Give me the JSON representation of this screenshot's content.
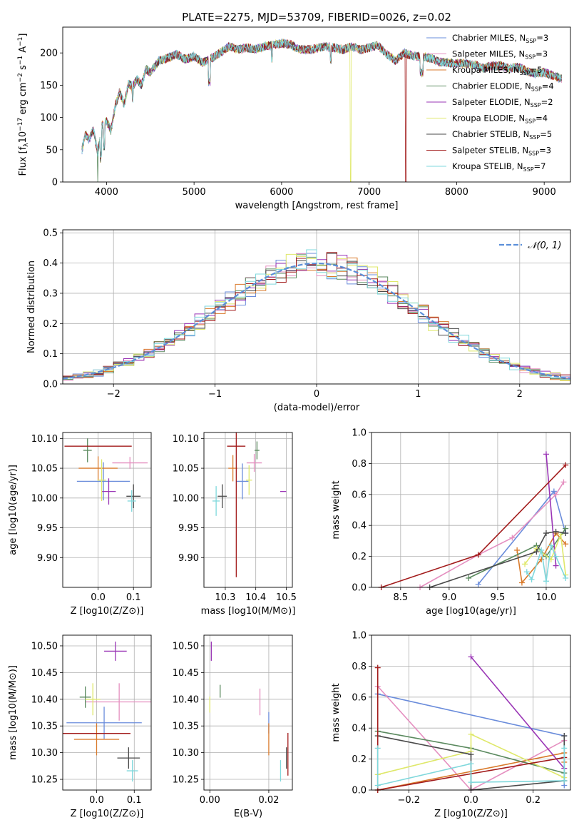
{
  "chart_data": [
    {
      "type": "line",
      "title": "PLATE=2275, MJD=53709, FIBERID=0026, z=0.02",
      "xlabel": "wavelength [Angstrom, rest frame]",
      "ylabel": "Flux [f_λ 10^-17 erg cm^-2 s^-1 A^-1]",
      "xlim": [
        3500,
        9300
      ],
      "ylim": [
        0,
        240
      ],
      "xticks": [
        "4000",
        "5000",
        "6000",
        "7000",
        "8000",
        "9000"
      ],
      "yticks": [
        "0",
        "50",
        "100",
        "150",
        "200"
      ],
      "legend_position": "upper right",
      "series": [
        {
          "name": "Chabrier MILES, N_SSP=3",
          "color": "#6a8cdb"
        },
        {
          "name": "Salpeter MILES, N_SSP=3",
          "color": "#e58fc0"
        },
        {
          "name": "Kroupa MILES, N_SSP=5",
          "color": "#d97a2b"
        },
        {
          "name": "Chabrier ELODIE, N_SSP=4",
          "color": "#5b8a5f"
        },
        {
          "name": "Salpeter ELODIE, N_SSP=2",
          "color": "#9a36b6"
        },
        {
          "name": "Kroupa ELODIE, N_SSP=4",
          "color": "#dfe86a"
        },
        {
          "name": "Chabrier STELIB, N_SSP=5",
          "color": "#4a4a4a"
        },
        {
          "name": "Salpeter STELIB, N_SSP=3",
          "color": "#a21b1b"
        },
        {
          "name": "Kroupa STELIB, N_SSP=7",
          "color": "#7fd8dc"
        }
      ],
      "envelope": {
        "x": [
          3720,
          3760,
          3800,
          3850,
          3900,
          3950,
          4000,
          4050,
          4100,
          4150,
          4200,
          4250,
          4300,
          4350,
          4400,
          4450,
          4500,
          4600,
          4700,
          4800,
          4900,
          5000,
          5100,
          5200,
          5300,
          5400,
          5500,
          5600,
          5700,
          5800,
          5900,
          6000,
          6100,
          6200,
          6300,
          6400,
          6500,
          6600,
          6700,
          6800,
          6900,
          7000,
          7100,
          7200,
          7300,
          7400,
          7500,
          7600,
          7700,
          7800,
          7900,
          8000,
          8100,
          8200,
          8300,
          8400,
          8500,
          8600,
          8700,
          8800,
          8900,
          9000,
          9100,
          9200
        ],
        "y": [
          50,
          75,
          65,
          82,
          45,
          88,
          95,
          80,
          118,
          140,
          120,
          152,
          148,
          160,
          150,
          175,
          170,
          188,
          192,
          198,
          190,
          195,
          185,
          192,
          200,
          210,
          205,
          208,
          206,
          210,
          212,
          215,
          213,
          206,
          205,
          207,
          210,
          208,
          205,
          210,
          205,
          208,
          212,
          198,
          188,
          200,
          195,
          195,
          192,
          186,
          185,
          184,
          183,
          182,
          176,
          180,
          180,
          176,
          178,
          172,
          168,
          170,
          165,
          160
        ]
      },
      "drops": [
        {
          "x": 3900,
          "y": 0
        },
        {
          "x": 6790,
          "y": 0
        },
        {
          "x": 7420,
          "y": 0
        }
      ]
    },
    {
      "type": "line",
      "xlabel": "(data-model)/error",
      "ylabel": "Normed distribution",
      "xlim": [
        -2.5,
        2.5
      ],
      "ylim": [
        0,
        0.51
      ],
      "xticks": [
        "−2",
        "−1",
        "0",
        "1",
        "2"
      ],
      "yticks": [
        "0.0",
        "0.1",
        "0.2",
        "0.3",
        "0.4",
        "0.5"
      ],
      "legend": "𝒩(0, 1)",
      "gaussian": {
        "mu": 0,
        "sigma": 1,
        "color": "#5b8fd9",
        "style": "dashed"
      },
      "histogram_bin_width": 0.1
    },
    {
      "type": "scatter",
      "xlabel": "Z [log10(Z/Z⊙)]",
      "ylabel": "age  [log10(age/yr)]",
      "xlim": [
        -0.1,
        0.15
      ],
      "ylim": [
        9.85,
        10.11
      ],
      "xticks": [
        "0.0",
        "0.1"
      ],
      "yticks": [
        "9.90",
        "9.95",
        "10.00",
        "10.05",
        "10.10"
      ],
      "points": [
        {
          "color": "#6a8cdb",
          "x": 0.015,
          "y": 10.028,
          "xe": 0.075,
          "ye": 0.032
        },
        {
          "color": "#e58fc0",
          "x": 0.09,
          "y": 10.059,
          "xe": 0.05,
          "ye": 0.01
        },
        {
          "color": "#d97a2b",
          "x": 0.0,
          "y": 10.05,
          "xe": 0.055,
          "ye": 0.02
        },
        {
          "color": "#5b8a5f",
          "x": -0.03,
          "y": 10.08,
          "xe": 0.012,
          "ye": 0.02
        },
        {
          "color": "#9a36b6",
          "x": 0.03,
          "y": 10.011,
          "xe": 0.02,
          "ye": 0.022
        },
        {
          "color": "#dfe86a",
          "x": 0.01,
          "y": 10.03,
          "xe": 0.012,
          "ye": 0.035
        },
        {
          "color": "#4a4a4a",
          "x": 0.1,
          "y": 10.003,
          "xe": 0.02,
          "ye": 0.02
        },
        {
          "color": "#a21b1b",
          "x": 0.0,
          "y": 10.087,
          "xe": 0.095,
          "ye": 0.0
        },
        {
          "color": "#7fd8dc",
          "x": 0.095,
          "y": 9.995,
          "xe": 0.012,
          "ye": 0.018
        }
      ]
    },
    {
      "type": "scatter",
      "xlabel": "mass [log10(M/M⊙)]",
      "xlim": [
        10.23,
        10.52
      ],
      "ylim": [
        9.85,
        10.11
      ],
      "xticks": [
        "10.3",
        "10.4",
        "10.5"
      ],
      "yticks": [
        "9.90",
        "9.95",
        "10.00",
        "10.05",
        "10.10"
      ],
      "points": [
        {
          "color": "#6a8cdb",
          "x": 10.356,
          "y": 10.028,
          "xe": 0.02,
          "ye": 0.03
        },
        {
          "color": "#e58fc0",
          "x": 10.395,
          "y": 10.059,
          "xe": 0.025,
          "ye": 0.015
        },
        {
          "color": "#d97a2b",
          "x": 10.325,
          "y": 10.05,
          "xe": 0.015,
          "ye": 0.022
        },
        {
          "color": "#5b8a5f",
          "x": 10.404,
          "y": 10.08,
          "xe": 0.008,
          "ye": 0.015
        },
        {
          "color": "#9a36b6",
          "x": 10.49,
          "y": 10.011,
          "xe": 0.01,
          "ye": 0.0
        },
        {
          "color": "#dfe86a",
          "x": 10.378,
          "y": 10.03,
          "xe": 0.01,
          "ye": 0.025
        },
        {
          "color": "#4a4a4a",
          "x": 10.29,
          "y": 10.003,
          "xe": 0.015,
          "ye": 0.02
        },
        {
          "color": "#a21b1b",
          "x": 10.336,
          "y": 10.087,
          "xe": 0.03,
          "ye": 0.22
        },
        {
          "color": "#7fd8dc",
          "x": 10.27,
          "y": 9.995,
          "xe": 0.012,
          "ye": 0.025
        }
      ]
    },
    {
      "type": "line",
      "xlabel": "age  [log10(age/yr)]",
      "ylabel": "mass weight",
      "xlim": [
        8.2,
        10.25
      ],
      "ylim": [
        0,
        1.0
      ],
      "xticks": [
        "8.5",
        "9.0",
        "9.5",
        "10.0"
      ],
      "yticks": [
        "0.0",
        "0.2",
        "0.4",
        "0.6",
        "0.8",
        "1.0"
      ],
      "series": [
        {
          "color": "#6a8cdb",
          "x": [
            9.3,
            10.08,
            10.2
          ],
          "y": [
            0.02,
            0.62,
            0.35
          ]
        },
        {
          "color": "#e58fc0",
          "x": [
            8.7,
            9.3,
            9.65,
            10.1,
            10.18
          ],
          "y": [
            0.0,
            0.21,
            0.32,
            0.6,
            0.68
          ]
        },
        {
          "color": "#d97a2b",
          "x": [
            9.7,
            9.75,
            9.95,
            10.1,
            10.2
          ],
          "y": [
            0.24,
            0.03,
            0.18,
            0.35,
            0.28
          ]
        },
        {
          "color": "#5b8a5f",
          "x": [
            9.2,
            9.9,
            10.0,
            10.2
          ],
          "y": [
            0.06,
            0.27,
            0.2,
            0.38
          ]
        },
        {
          "color": "#9a36b6",
          "x": [
            10.0,
            10.1
          ],
          "y": [
            0.86,
            0.14
          ]
        },
        {
          "color": "#dfe86a",
          "x": [
            9.78,
            9.9,
            10.05,
            10.15,
            10.2
          ],
          "y": [
            0.15,
            0.25,
            0.18,
            0.34,
            0.08
          ]
        },
        {
          "color": "#4a4a4a",
          "x": [
            8.8,
            9.9,
            10.0,
            10.1,
            10.2
          ],
          "y": [
            0.0,
            0.23,
            0.35,
            0.36,
            0.35
          ]
        },
        {
          "color": "#a21b1b",
          "x": [
            8.3,
            9.3,
            10.2
          ],
          "y": [
            0.0,
            0.21,
            0.79
          ]
        },
        {
          "color": "#7fd8dc",
          "x": [
            9.8,
            9.85,
            9.95,
            10.0,
            10.05,
            10.1,
            10.2
          ],
          "y": [
            0.1,
            0.05,
            0.24,
            0.04,
            0.27,
            0.2,
            0.06
          ]
        }
      ]
    },
    {
      "type": "scatter",
      "xlabel": "Z [log10(Z/Z⊙)]",
      "ylabel": "mass [log10(M/M⊙)]",
      "xlim": [
        -0.09,
        0.145
      ],
      "ylim": [
        10.23,
        10.52
      ],
      "xticks": [
        "0.0",
        "0.1"
      ],
      "yticks": [
        "10.25",
        "10.30",
        "10.35",
        "10.40",
        "10.45",
        "10.50"
      ],
      "points": [
        {
          "color": "#6a8cdb",
          "x": 0.02,
          "y": 10.356,
          "xe": 0.1,
          "ye": 0.03
        },
        {
          "color": "#e58fc0",
          "x": 0.06,
          "y": 10.395,
          "xe": 0.09,
          "ye": 0.035
        },
        {
          "color": "#d97a2b",
          "x": 0.0,
          "y": 10.325,
          "xe": 0.06,
          "ye": 0.03
        },
        {
          "color": "#5b8a5f",
          "x": -0.03,
          "y": 10.404,
          "xe": 0.015,
          "ye": 0.02
        },
        {
          "color": "#9a36b6",
          "x": 0.05,
          "y": 10.49,
          "xe": 0.03,
          "ye": 0.018
        },
        {
          "color": "#dfe86a",
          "x": -0.01,
          "y": 10.4,
          "xe": 0.02,
          "ye": 0.03
        },
        {
          "color": "#4a4a4a",
          "x": 0.085,
          "y": 10.29,
          "xe": 0.03,
          "ye": 0.02
        },
        {
          "color": "#a21b1b",
          "x": 0.0,
          "y": 10.336,
          "xe": 0.09,
          "ye": 0.0
        },
        {
          "color": "#7fd8dc",
          "x": 0.095,
          "y": 10.266,
          "xe": 0.015,
          "ye": 0.02
        }
      ]
    },
    {
      "type": "scatter",
      "xlabel": "E(B-V)",
      "xlim": [
        -0.002,
        0.028
      ],
      "ylim": [
        10.23,
        10.52
      ],
      "xticks": [
        "0.00",
        "0.02"
      ],
      "yticks": [
        "10.25",
        "10.30",
        "10.35",
        "10.40",
        "10.45",
        "10.50"
      ],
      "points": [
        {
          "color": "#6a8cdb",
          "x": 0.02,
          "y": 10.356,
          "ye": 0.02
        },
        {
          "color": "#e58fc0",
          "x": 0.017,
          "y": 10.395,
          "ye": 0.025
        },
        {
          "color": "#d97a2b",
          "x": 0.02,
          "y": 10.325,
          "ye": 0.03
        },
        {
          "color": "#5b8a5f",
          "x": 0.0035,
          "y": 10.415,
          "ye": 0.012
        },
        {
          "color": "#9a36b6",
          "x": 0.0005,
          "y": 10.49,
          "ye": 0.018
        },
        {
          "color": "#dfe86a",
          "x": 0.0,
          "y": 10.39,
          "ye": 0.015
        },
        {
          "color": "#4a4a4a",
          "x": 0.026,
          "y": 10.29,
          "ye": 0.02
        },
        {
          "color": "#a21b1b",
          "x": 0.0265,
          "y": 10.297,
          "ye": 0.04
        },
        {
          "color": "#7fd8dc",
          "x": 0.024,
          "y": 10.266,
          "ye": 0.02
        }
      ]
    },
    {
      "type": "line",
      "xlabel": "Z [log10(Z/Z⊙)]",
      "ylabel": "mass weight",
      "xlim": [
        -0.32,
        0.32
      ],
      "ylim": [
        0,
        1.0
      ],
      "xticks": [
        "−0.2",
        "0.0",
        "0.2"
      ],
      "yticks": [
        "0.0",
        "0.2",
        "0.4",
        "0.6",
        "0.8",
        "1.0"
      ],
      "series": [
        {
          "color": "#6a8cdb",
          "x": [
            -0.3,
            0.3,
            0.3
          ],
          "y": [
            0.62,
            0.35,
            0.03
          ]
        },
        {
          "color": "#e58fc0",
          "x": [
            -0.3,
            0.0,
            0.3
          ],
          "y": [
            0.67,
            0.0,
            0.32
          ]
        },
        {
          "color": "#d97a2b",
          "x": [
            -0.3,
            0.3,
            0.3
          ],
          "y": [
            0.0,
            0.24,
            0.18
          ]
        },
        {
          "color": "#5b8a5f",
          "x": [
            -0.3,
            0.0,
            0.3,
            0.3
          ],
          "y": [
            0.38,
            0.27,
            0.11,
            0.06
          ]
        },
        {
          "color": "#9a36b6",
          "x": [
            0.0,
            0.3
          ],
          "y": [
            0.86,
            0.14
          ]
        },
        {
          "color": "#dfe86a",
          "x": [
            -0.3,
            0.0,
            0.0,
            0.3
          ],
          "y": [
            0.1,
            0.25,
            0.36,
            0.08
          ]
        },
        {
          "color": "#4a4a4a",
          "x": [
            -0.3,
            0.0,
            0.0,
            0.3,
            0.3
          ],
          "y": [
            0.35,
            0.23,
            0.0,
            0.06,
            0.35
          ]
        },
        {
          "color": "#a21b1b",
          "x": [
            -0.3,
            -0.3,
            0.3
          ],
          "y": [
            0.79,
            0.0,
            0.21
          ]
        },
        {
          "color": "#7fd8dc",
          "x": [
            -0.3,
            -0.3,
            0.0,
            0.0,
            0.3,
            0.3
          ],
          "y": [
            0.27,
            0.03,
            0.17,
            0.05,
            0.06,
            0.27
          ]
        }
      ]
    }
  ]
}
